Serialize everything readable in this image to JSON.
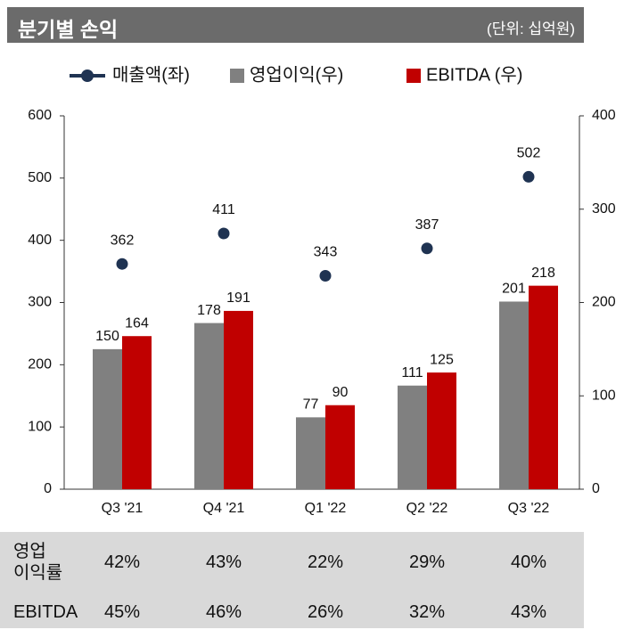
{
  "chart_data": {
    "type": "combo",
    "title": "분기별 손익",
    "unit_note": "(단위: 십억원)",
    "categories": [
      "Q3 '21",
      "Q4 '21",
      "Q1 '22",
      "Q2 '22",
      "Q3 '22"
    ],
    "ylim": [
      0,
      600
    ],
    "yticks": [
      0,
      100,
      200,
      300,
      400,
      500,
      600
    ],
    "y2lim": [
      0,
      400
    ],
    "y2ticks": [
      0,
      100,
      200,
      300,
      400
    ],
    "grid": false,
    "legend": "top",
    "series": [
      {
        "name": "매출액(좌)",
        "type": "line",
        "color": "#1f3352",
        "values": [
          362,
          411,
          343,
          387,
          502
        ]
      },
      {
        "name": "영업이익(우)",
        "type": "bar",
        "axis": "y2",
        "color": "#808080",
        "values": [
          150,
          178,
          77,
          111,
          201
        ]
      },
      {
        "name": "EBITDA (우)",
        "type": "bar",
        "axis": "y2",
        "color": "#c00000",
        "values": [
          164,
          191,
          90,
          125,
          218
        ]
      }
    ]
  },
  "table": {
    "rows": [
      [
        "영업\n이익률",
        "42%",
        "43%",
        "22%",
        "29%",
        "40%"
      ],
      [
        "EBITDA",
        "45%",
        "46%",
        "26%",
        "32%",
        "43%"
      ]
    ]
  }
}
